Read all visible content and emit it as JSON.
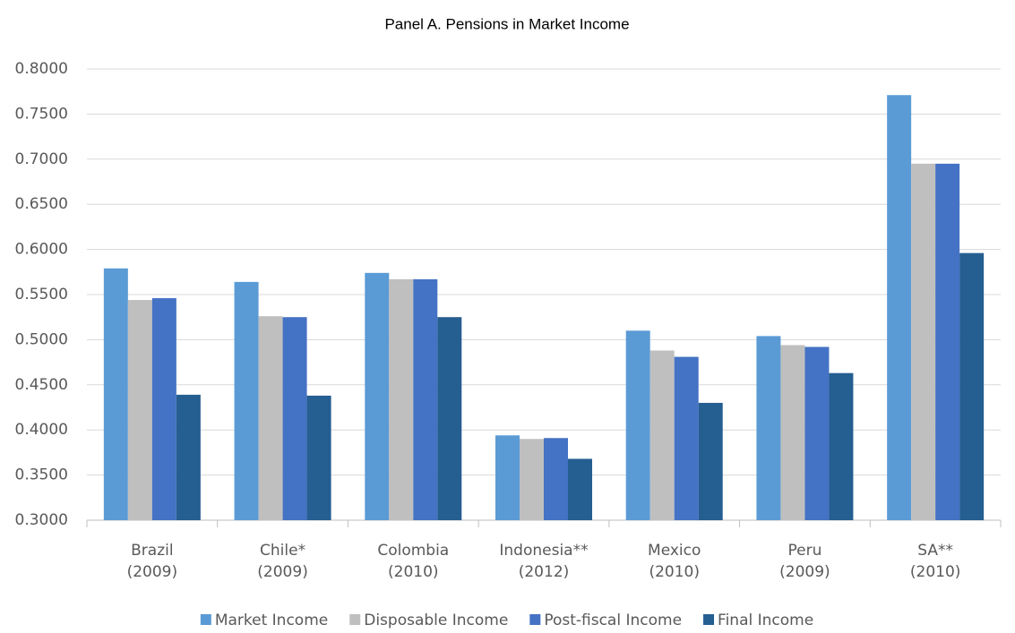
{
  "chart_data": {
    "type": "bar",
    "title": "Panel A. Pensions in Market Income",
    "categories": [
      [
        "Brazil",
        "(2009)"
      ],
      [
        "Chile*",
        "(2009)"
      ],
      [
        "Colombia",
        "(2010)"
      ],
      [
        "Indonesia**",
        "(2012)"
      ],
      [
        "Mexico",
        "(2010)"
      ],
      [
        "Peru",
        "(2009)"
      ],
      [
        "SA**",
        "(2010)"
      ]
    ],
    "series": [
      {
        "name": "Market Income",
        "color": "#5b9bd5",
        "values": [
          0.579,
          0.564,
          0.574,
          0.394,
          0.51,
          0.504,
          0.771
        ]
      },
      {
        "name": "Disposable Income",
        "color": "#bfbfbf",
        "values": [
          0.544,
          0.526,
          0.567,
          0.39,
          0.488,
          0.494,
          0.695
        ]
      },
      {
        "name": "Post-fiscal Income",
        "color": "#4472c4",
        "values": [
          0.546,
          0.525,
          0.567,
          0.391,
          0.481,
          0.492,
          0.695
        ]
      },
      {
        "name": "Final Income",
        "color": "#255e91",
        "values": [
          0.439,
          0.438,
          0.525,
          0.368,
          0.43,
          0.463,
          0.596
        ]
      }
    ],
    "ylim": [
      0.3,
      0.8
    ],
    "yticks": [
      {
        "value": 0.3,
        "label": "0.3000"
      },
      {
        "value": 0.35,
        "label": "0.3500"
      },
      {
        "value": 0.4,
        "label": "0.4000"
      },
      {
        "value": 0.45,
        "label": "0.4500"
      },
      {
        "value": 0.5,
        "label": "0.5000"
      },
      {
        "value": 0.55,
        "label": "0.5500"
      },
      {
        "value": 0.6,
        "label": "0.6000"
      },
      {
        "value": 0.65,
        "label": "0.6500"
      },
      {
        "value": 0.7,
        "label": "0.7000"
      },
      {
        "value": 0.75,
        "label": "0.7500"
      },
      {
        "value": 0.8,
        "label": "0.8000"
      }
    ],
    "grid": true,
    "legend": "bottom"
  }
}
